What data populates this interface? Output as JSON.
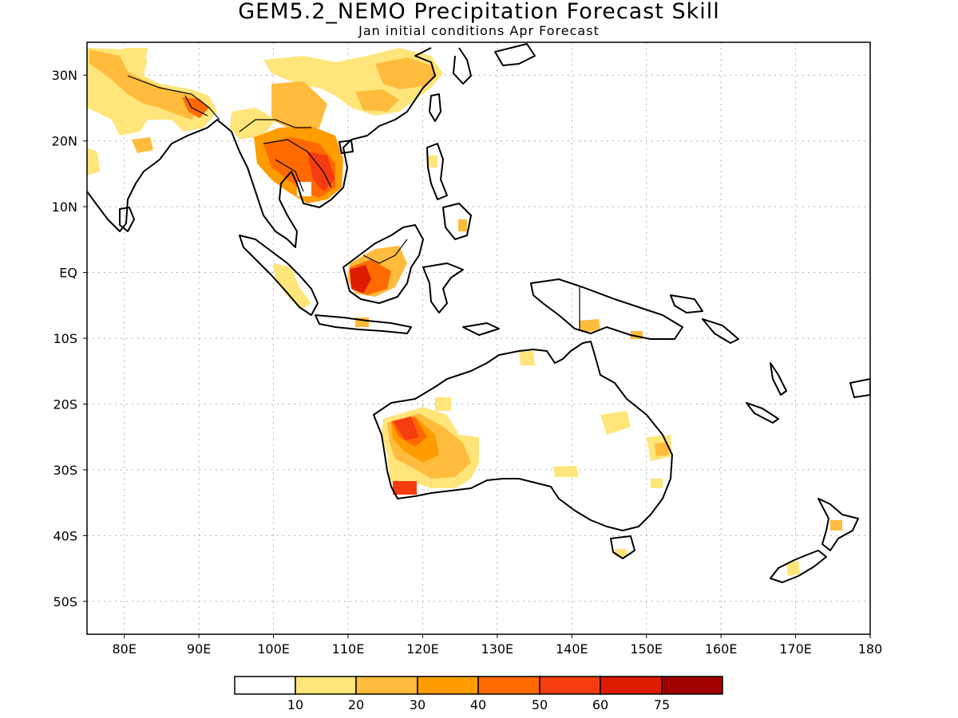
{
  "title": "GEM5.2_NEMO Precipitation Forecast Skill",
  "subtitle": "Jan initial conditions  Apr Forecast",
  "colors": {
    "c1": "#ffffff",
    "c2": "#ffe57a",
    "c3": "#ffbb3c",
    "c4": "#ff9c00",
    "c5": "#ff6a00",
    "c6": "#f53c10",
    "c7": "#de1c00",
    "c8": "#a00000"
  },
  "map": {
    "lon_range": [
      75,
      180
    ],
    "lat_range": [
      -55,
      35
    ],
    "x_ticks": [
      {
        "lon": 80,
        "label": "80E"
      },
      {
        "lon": 90,
        "label": "90E"
      },
      {
        "lon": 100,
        "label": "100E"
      },
      {
        "lon": 110,
        "label": "110E"
      },
      {
        "lon": 120,
        "label": "120E"
      },
      {
        "lon": 130,
        "label": "130E"
      },
      {
        "lon": 140,
        "label": "140E"
      },
      {
        "lon": 150,
        "label": "150E"
      },
      {
        "lon": 160,
        "label": "160E"
      },
      {
        "lon": 170,
        "label": "170E"
      },
      {
        "lon": 180,
        "label": "180"
      }
    ],
    "y_ticks": [
      {
        "lat": 30,
        "label": "30N"
      },
      {
        "lat": 20,
        "label": "20N"
      },
      {
        "lat": 10,
        "label": "10N"
      },
      {
        "lat": 0,
        "label": "EQ"
      },
      {
        "lat": -10,
        "label": "10S"
      },
      {
        "lat": -20,
        "label": "20S"
      },
      {
        "lat": -30,
        "label": "30S"
      },
      {
        "lat": -40,
        "label": "40S"
      },
      {
        "lat": -50,
        "label": "50S"
      }
    ]
  },
  "colorbar": {
    "labels": [
      "10",
      "20",
      "30",
      "40",
      "50",
      "60",
      "75"
    ]
  }
}
